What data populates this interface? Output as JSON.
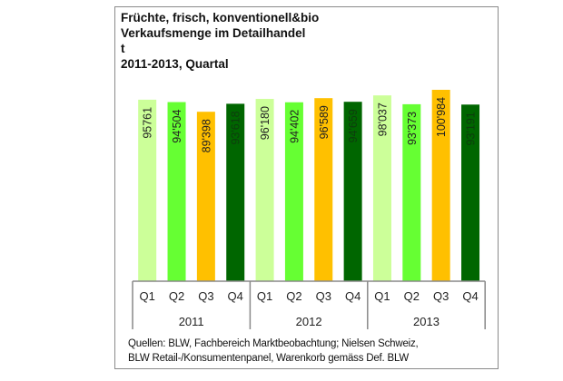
{
  "chart_data": {
    "type": "bar",
    "title_lines": [
      "Früchte, frisch, konventionell&bio",
      "Verkaufsmenge im Detailhandel",
      "t",
      "2011-2013, Quartal"
    ],
    "categories": [
      "Q1",
      "Q2",
      "Q3",
      "Q4",
      "Q1",
      "Q2",
      "Q3",
      "Q4",
      "Q1",
      "Q2",
      "Q3",
      "Q4"
    ],
    "groups": [
      "2011",
      "2012",
      "2013"
    ],
    "values": [
      95761,
      94504,
      89398,
      93618,
      96180,
      94402,
      96589,
      94659,
      98037,
      93373,
      100984,
      93191
    ],
    "labels": [
      "95761",
      "94'504",
      "89'398",
      "93'618",
      "96'180",
      "94'402",
      "96'589",
      "94'659",
      "98'037",
      "93'373",
      "100'984",
      "93'191"
    ],
    "quarter_colors": {
      "Q1": "#ccff99",
      "Q2": "#66ff33",
      "Q3": "#ffc000",
      "Q4": "#006600"
    },
    "ylim": [
      0,
      100984
    ],
    "xlabel": "",
    "ylabel": "t",
    "grid": false
  },
  "sources": [
    "Quellen: BLW, Fachbereich Marktbeobachtung; Nielsen Schweiz,",
    "BLW Retail-/Konsumentenpanel, Warenkorb gemäss Def. BLW"
  ]
}
